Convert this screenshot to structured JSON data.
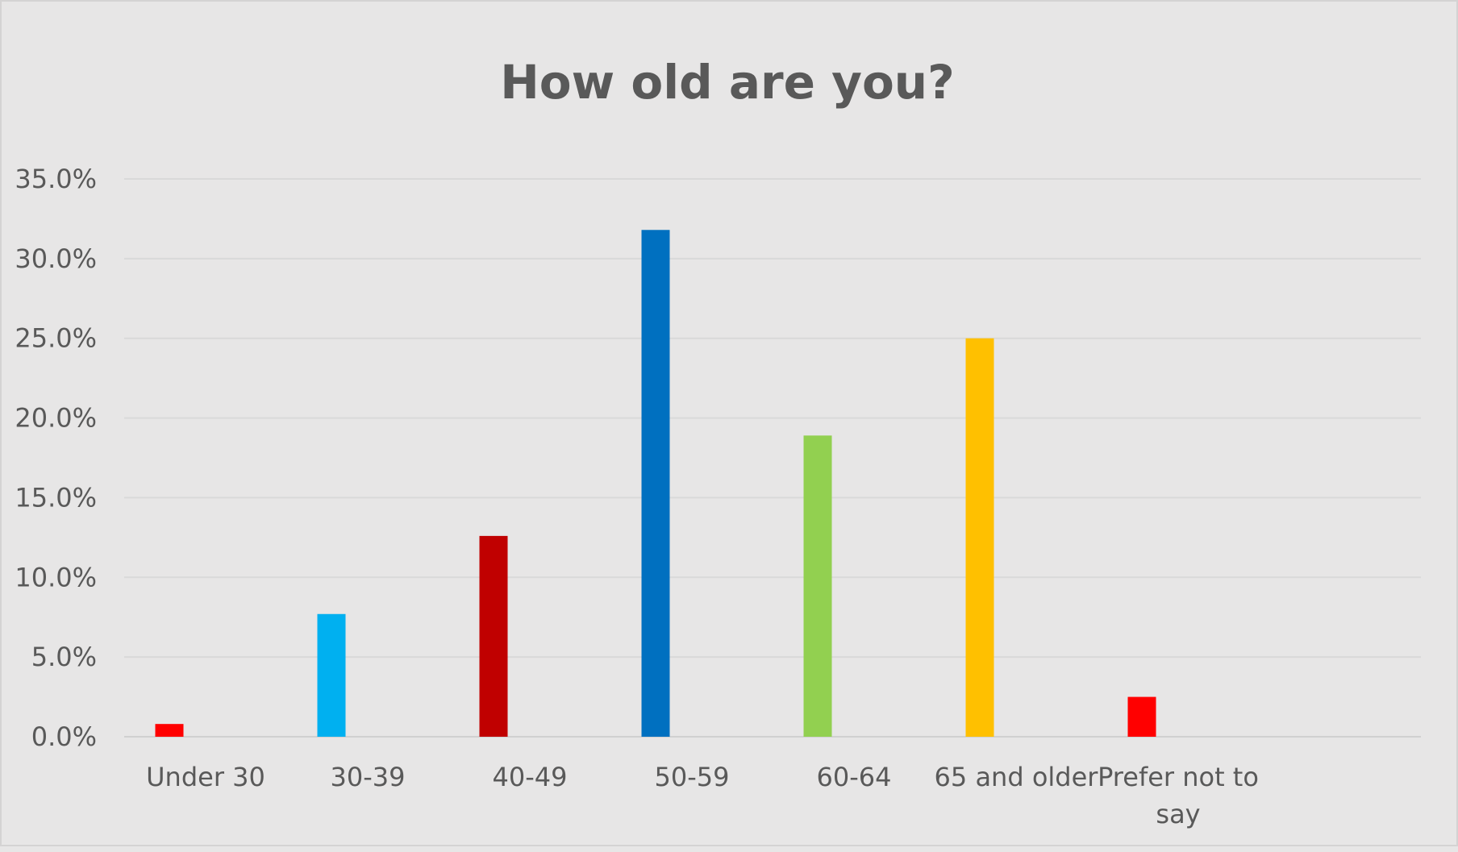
{
  "chart_data": {
    "type": "bar",
    "title": "How old are you?",
    "xlabel": "",
    "ylabel": "",
    "ylim": [
      0,
      35
    ],
    "yticks": [
      "0.0%",
      "5.0%",
      "10.0%",
      "15.0%",
      "20.0%",
      "25.0%",
      "30.0%",
      "35.0%"
    ],
    "grid": true,
    "legend": "none",
    "categories": [
      "Under 30",
      "30-39",
      "40-49",
      "50-59",
      "60-64",
      "65 and older",
      "Prefer not to say"
    ],
    "values": [
      0.8,
      7.7,
      12.6,
      31.8,
      18.9,
      25.0,
      2.5
    ],
    "colors": [
      "#ff0000",
      "#00b0f0",
      "#c00000",
      "#0070c0",
      "#92d050",
      "#ffc000",
      "#ff0000"
    ]
  }
}
